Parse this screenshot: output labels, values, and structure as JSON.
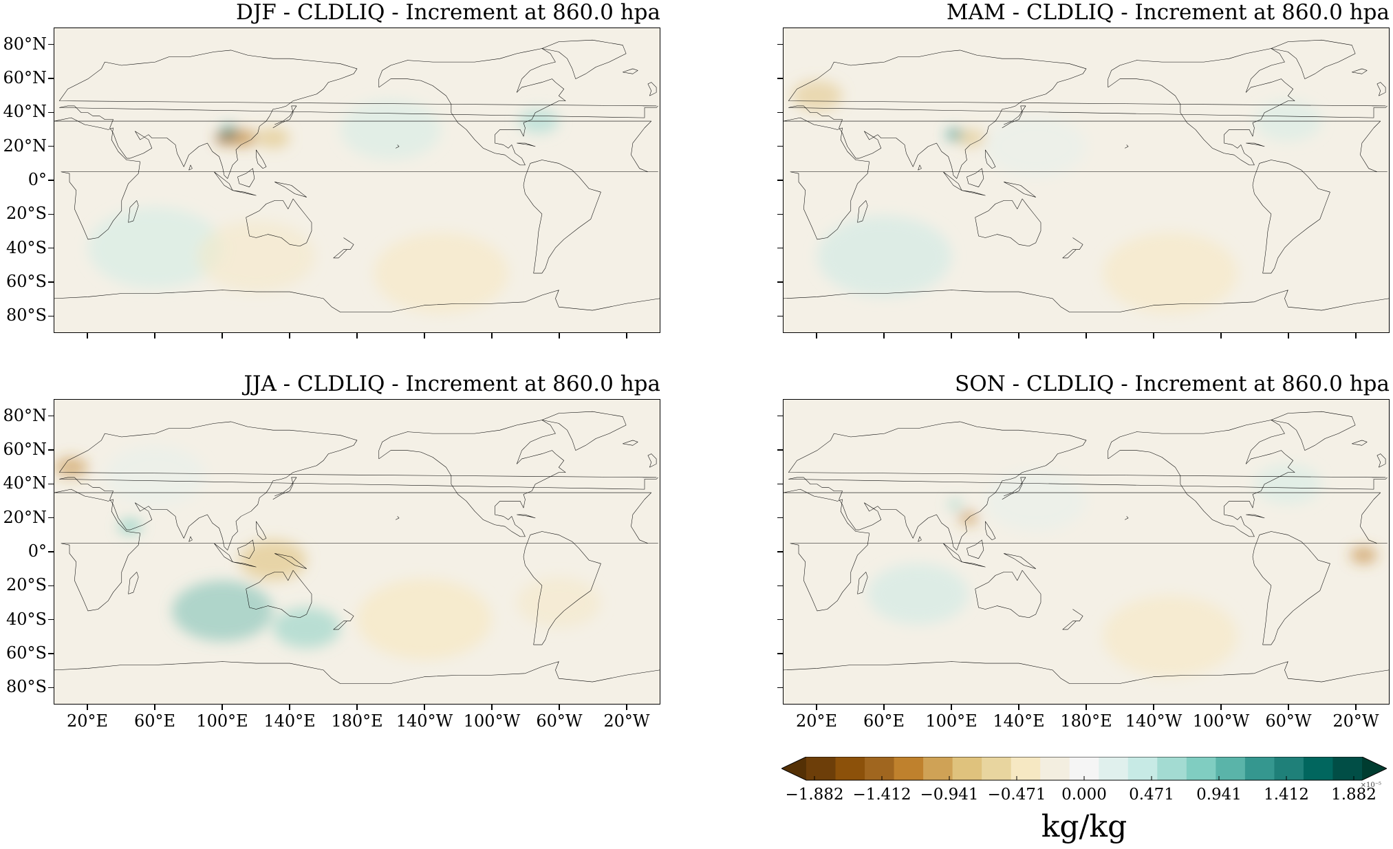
{
  "panels": [
    {
      "id": "djf",
      "title": "DJF - CLDLIQ - Increment at 860.0 hpa"
    },
    {
      "id": "mam",
      "title": "MAM - CLDLIQ - Increment at 860.0 hpa"
    },
    {
      "id": "jja",
      "title": "JJA - CLDLIQ - Increment at 860.0 hpa"
    },
    {
      "id": "son",
      "title": "SON - CLDLIQ - Increment at 860.0 hpa"
    }
  ],
  "lat_ticks": [
    "80°N",
    "60°N",
    "40°N",
    "20°N",
    "0°",
    "20°S",
    "40°S",
    "60°S",
    "80°S"
  ],
  "lon_ticks": [
    "20°E",
    "60°E",
    "100°E",
    "140°E",
    "180°E",
    "140°W",
    "100°W",
    "60°W",
    "20°W"
  ],
  "colorbar": {
    "tick_labels": [
      "−1.882",
      "−1.412",
      "−0.941",
      "−0.471",
      "0.000",
      "0.471",
      "0.941",
      "1.412",
      "1.882"
    ],
    "exponent": "×10⁻⁵",
    "unit": "kg/kg",
    "cmap": "BrBG",
    "colors": [
      "#543005",
      "#6d3e09",
      "#8c510a",
      "#a0661f",
      "#bf812d",
      "#cfa256",
      "#dfc27d",
      "#e8d59f",
      "#f6e8c3",
      "#f3eee0",
      "#f5f5f5",
      "#e0f0ed",
      "#c7eae5",
      "#a3dbd2",
      "#80cdc1",
      "#5ab4a9",
      "#35978f",
      "#1f8079",
      "#01665e",
      "#014e46",
      "#003c30"
    ]
  },
  "map_background": "#f4f0e6",
  "coastline_color": "#000000"
}
